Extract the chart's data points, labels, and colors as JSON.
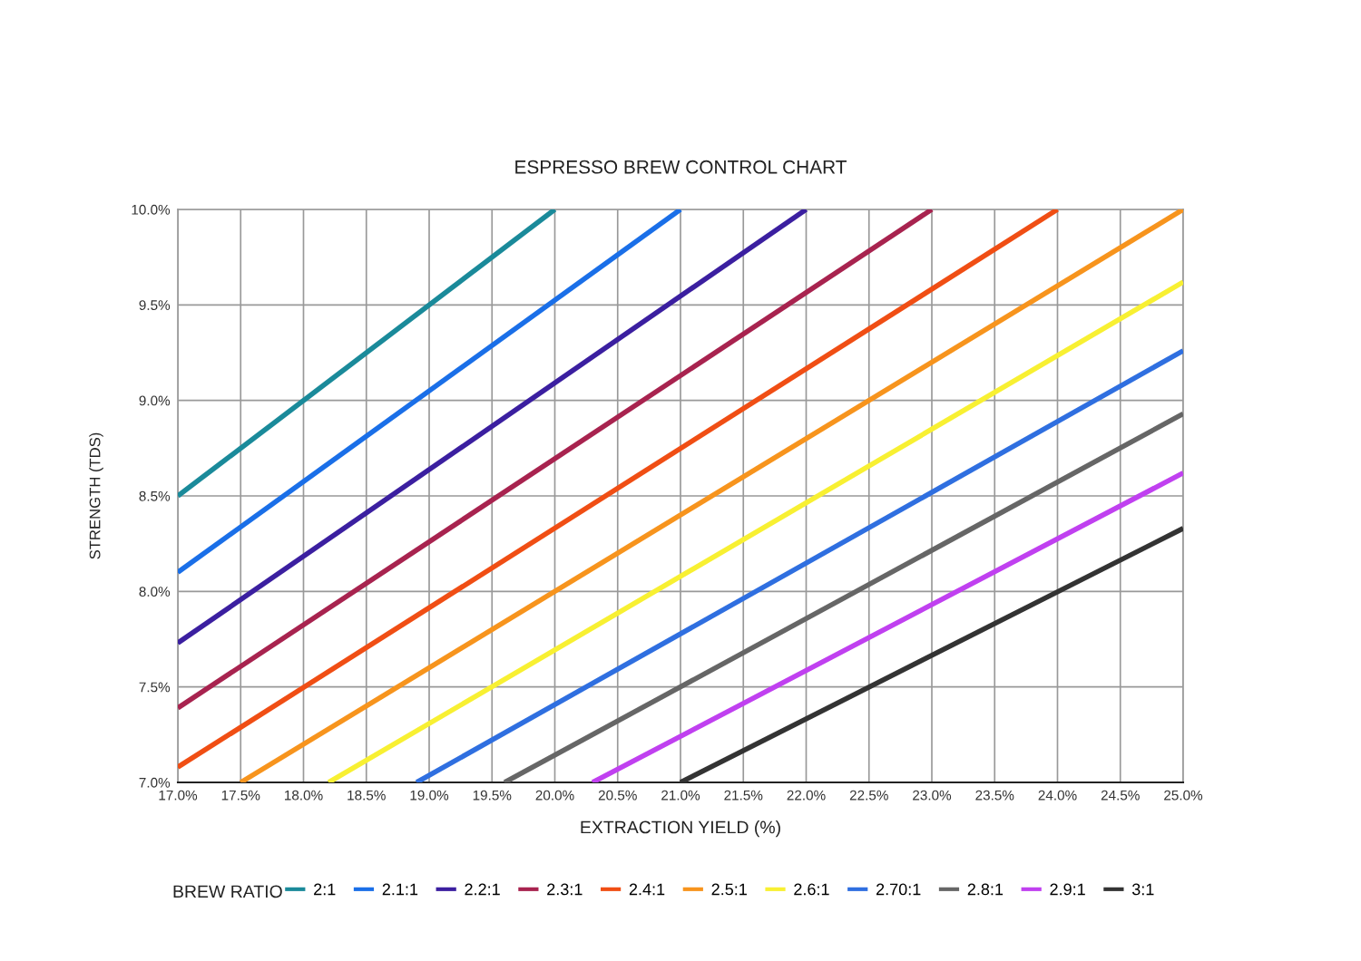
{
  "chart_data": {
    "type": "line",
    "title": "ESPRESSO BREW CONTROL CHART",
    "xlabel": "EXTRACTION YIELD (%)",
    "ylabel": "STRENGTH (TDS)",
    "legend_title": "BREW RATIO",
    "xlim": [
      17.0,
      25.0
    ],
    "xticks": [
      {
        "value": 17.0,
        "label": "17.0%"
      },
      {
        "value": 17.5,
        "label": "17.5%"
      },
      {
        "value": 18.0,
        "label": "18.0%"
      },
      {
        "value": 18.5,
        "label": "18.5%"
      },
      {
        "value": 19.0,
        "label": "19.0%"
      },
      {
        "value": 19.5,
        "label": "19.5%"
      },
      {
        "value": 20.0,
        "label": "20.0%"
      },
      {
        "value": 20.5,
        "label": "20.5%"
      },
      {
        "value": 21.0,
        "label": "21.0%"
      },
      {
        "value": 21.5,
        "label": "21.5%"
      },
      {
        "value": 22.0,
        "label": "22.0%"
      },
      {
        "value": 22.5,
        "label": "22.5%"
      },
      {
        "value": 23.0,
        "label": "23.0%"
      },
      {
        "value": 23.5,
        "label": "23.5%"
      },
      {
        "value": 24.0,
        "label": "24.0%"
      },
      {
        "value": 24.5,
        "label": "24.5%"
      },
      {
        "value": 25.0,
        "label": "25.0%"
      }
    ],
    "ylim": [
      7.0,
      10.0
    ],
    "yticks": [
      {
        "value": 7.0,
        "label": "7.0%"
      },
      {
        "value": 7.5,
        "label": "7.5%"
      },
      {
        "value": 8.0,
        "label": "8.0%"
      },
      {
        "value": 8.5,
        "label": "8.5%"
      },
      {
        "value": 9.0,
        "label": "9.0%"
      },
      {
        "value": 9.5,
        "label": "9.5%"
      },
      {
        "value": 10.0,
        "label": "10.0%"
      }
    ],
    "grid": true,
    "legend": "bottom",
    "marker": "none",
    "line_style": "solid",
    "series": [
      {
        "name": "2:1",
        "color": "#1a8a9a",
        "x": [
          17.0,
          20.0
        ],
        "values": [
          8.5,
          10.0
        ]
      },
      {
        "name": "2.1:1",
        "color": "#1a6fe8",
        "x": [
          17.0,
          21.0
        ],
        "values": [
          8.1,
          10.0
        ]
      },
      {
        "name": "2.2:1",
        "color": "#3b1fa0",
        "x": [
          17.0,
          22.0
        ],
        "values": [
          7.73,
          10.0
        ]
      },
      {
        "name": "2.3:1",
        "color": "#a8234f",
        "x": [
          17.0,
          23.0
        ],
        "values": [
          7.39,
          10.0
        ]
      },
      {
        "name": "2.4:1",
        "color": "#f04e14",
        "x": [
          17.0,
          24.0
        ],
        "values": [
          7.08,
          10.0
        ]
      },
      {
        "name": "2.5:1",
        "color": "#f7941d",
        "x": [
          17.5,
          25.0
        ],
        "values": [
          7.0,
          10.0
        ]
      },
      {
        "name": "2.6:1",
        "color": "#f8f032",
        "x": [
          18.2,
          25.0
        ],
        "values": [
          7.0,
          9.62
        ]
      },
      {
        "name": "2.70:1",
        "color": "#2f6fe0",
        "x": [
          18.9,
          25.0
        ],
        "values": [
          7.0,
          9.26
        ]
      },
      {
        "name": "2.8:1",
        "color": "#666666",
        "x": [
          19.6,
          25.0
        ],
        "values": [
          7.0,
          8.93
        ]
      },
      {
        "name": "2.9:1",
        "color": "#c040f0",
        "x": [
          20.3,
          25.0
        ],
        "values": [
          7.0,
          8.62
        ]
      },
      {
        "name": "3:1",
        "color": "#333333",
        "x": [
          21.0,
          25.0
        ],
        "values": [
          7.0,
          8.33
        ]
      }
    ]
  }
}
